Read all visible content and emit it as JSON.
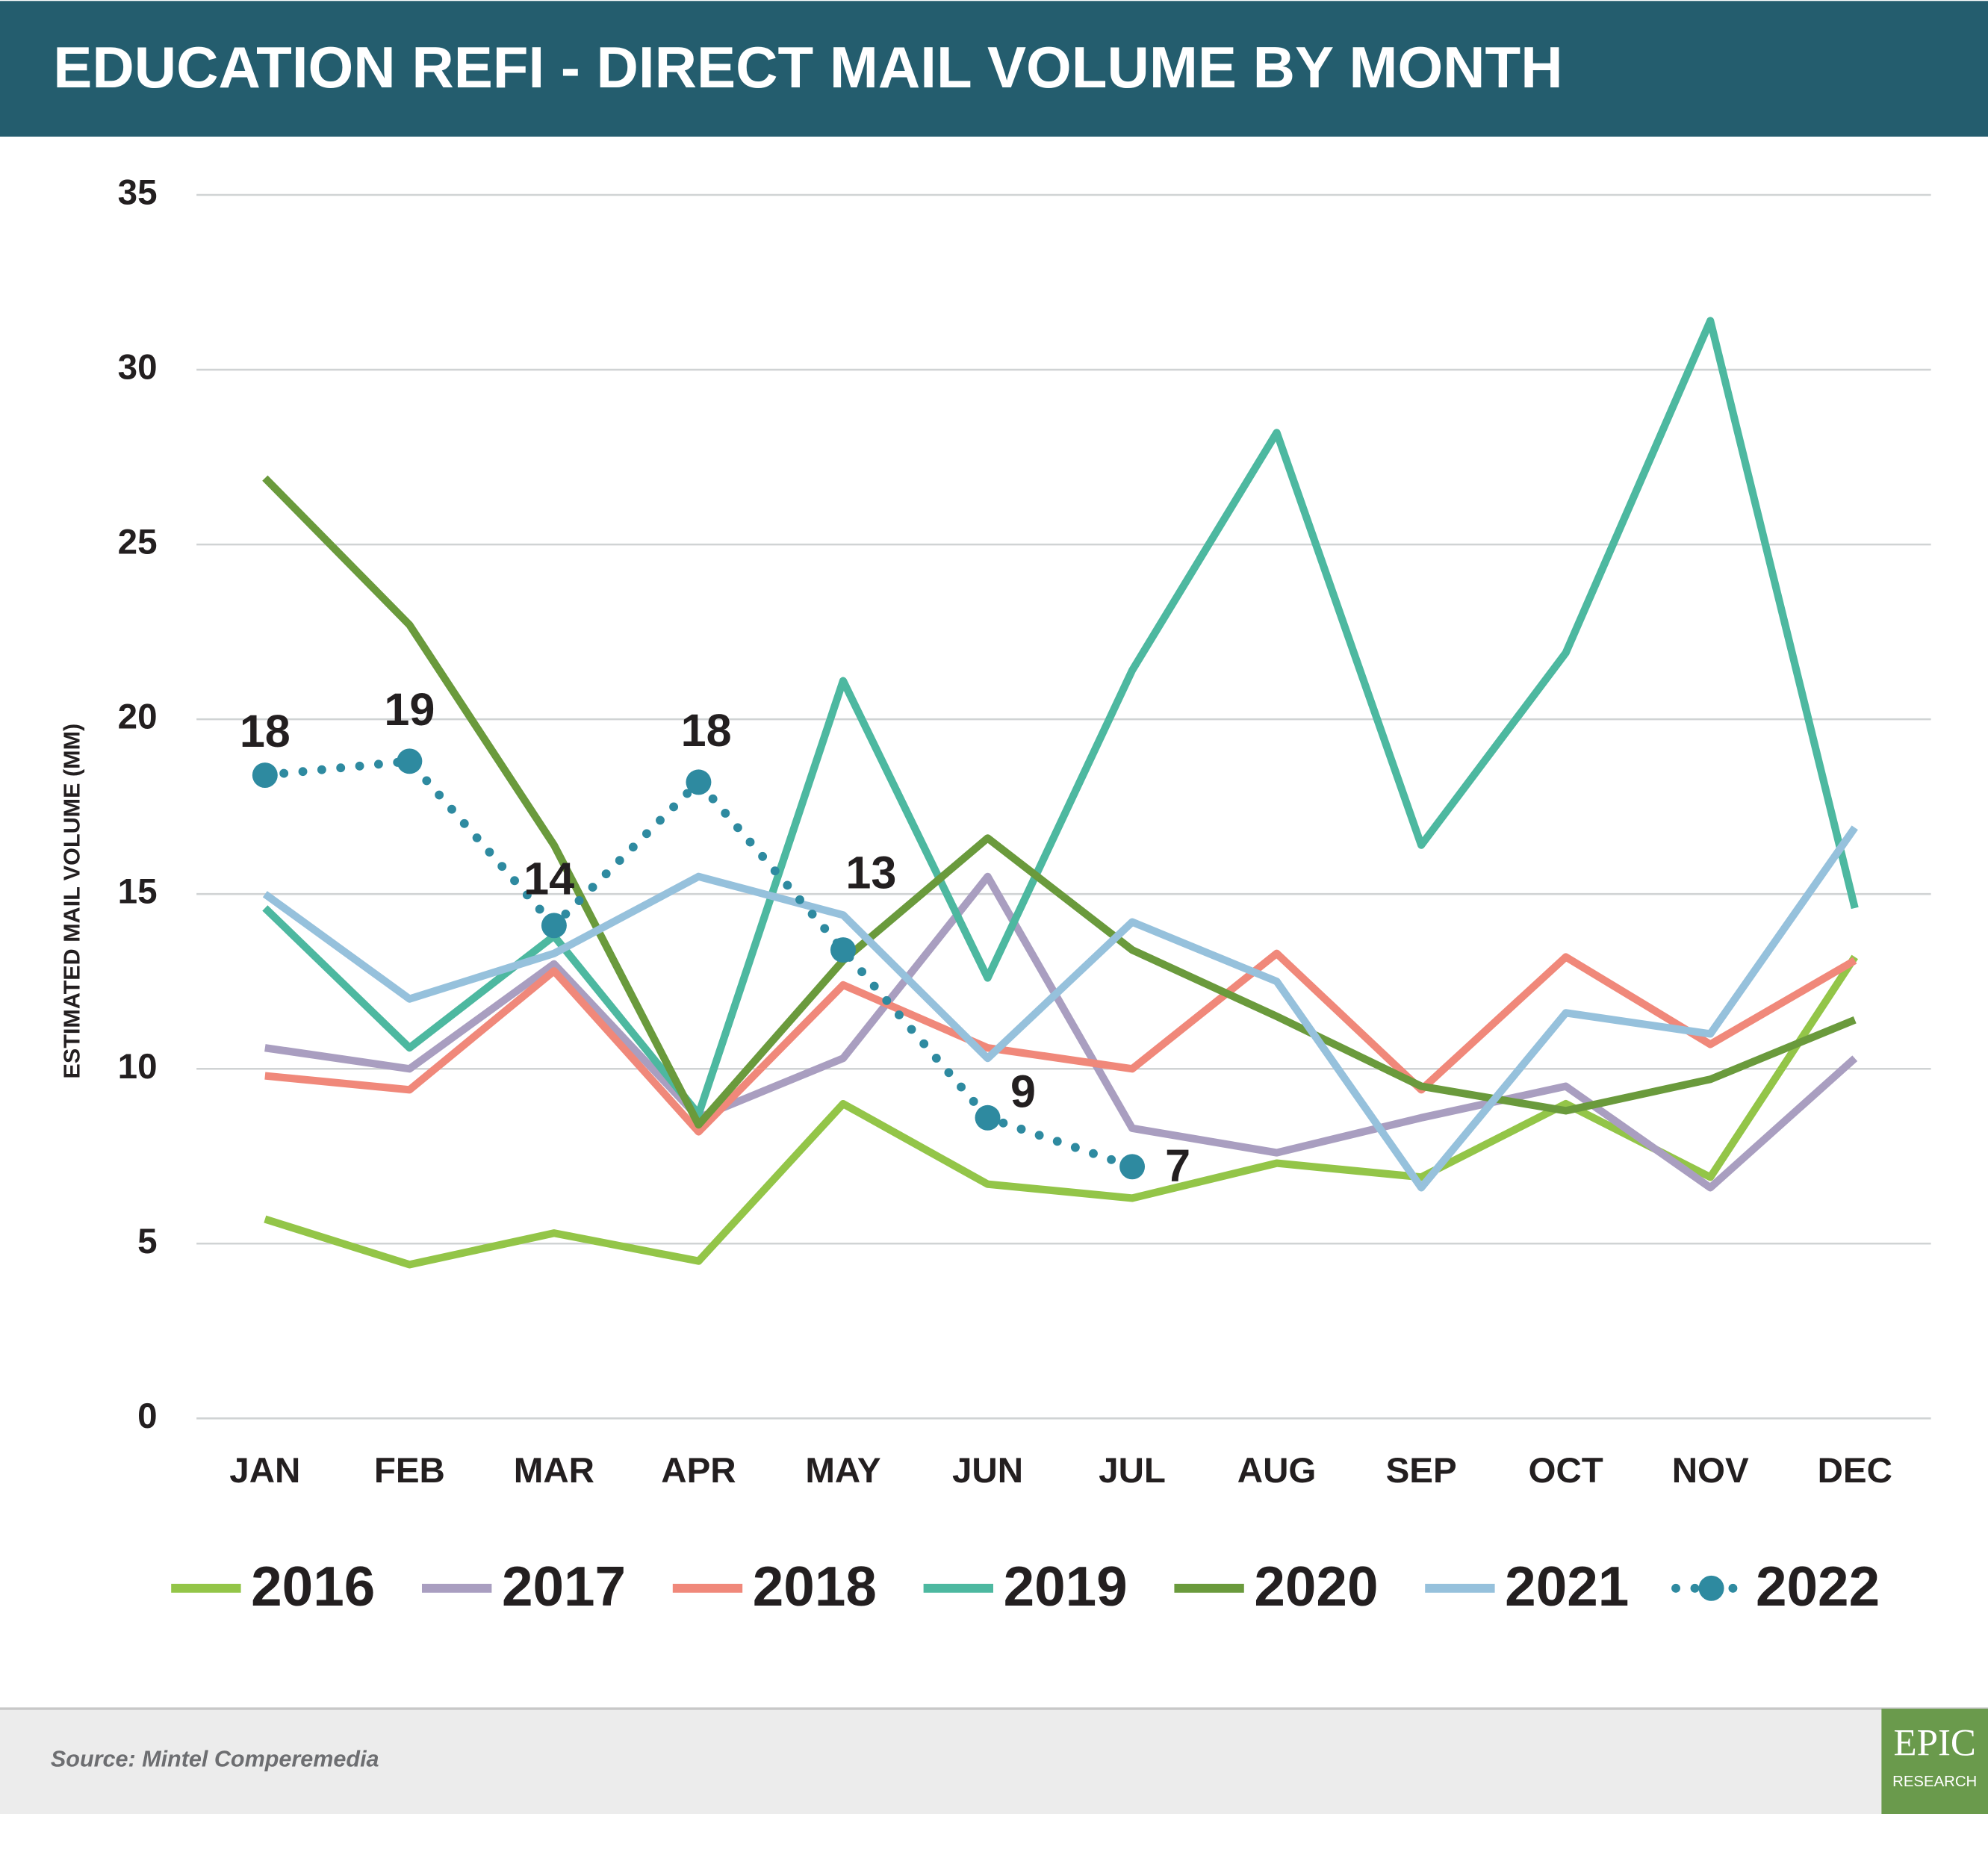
{
  "chart_data": {
    "type": "line",
    "title": "EDUCATION REFI - DIRECT MAIL VOLUME BY MONTH",
    "y_label": "ESTIMATED MAIL VOLUME (MM)",
    "source": "Source: Mintel Comperemedia",
    "logo": {
      "top": "EPIC",
      "bottom": "RESEARCH"
    },
    "categories": [
      "JAN",
      "FEB",
      "MAR",
      "APR",
      "MAY",
      "JUN",
      "JUL",
      "AUG",
      "SEP",
      "OCT",
      "NOV",
      "DEC"
    ],
    "ylim": [
      0,
      35
    ],
    "yticks": [
      0,
      5,
      10,
      15,
      20,
      25,
      30,
      35
    ],
    "grid": true,
    "series": [
      {
        "name": "2016",
        "color": "#93c548",
        "values": [
          5.7,
          4.4,
          5.3,
          4.5,
          9.0,
          6.7,
          6.3,
          7.3,
          6.9,
          9.0,
          6.9,
          13.2
        ]
      },
      {
        "name": "2017",
        "color": "#a99ec0",
        "values": [
          10.6,
          10.0,
          13.0,
          8.6,
          10.3,
          15.5,
          8.3,
          7.6,
          8.6,
          9.5,
          6.6,
          10.3
        ]
      },
      {
        "name": "2018",
        "color": "#f0887a",
        "values": [
          9.8,
          9.4,
          12.8,
          8.2,
          12.4,
          10.6,
          10.0,
          13.3,
          9.4,
          13.2,
          10.7,
          13.1
        ]
      },
      {
        "name": "2019",
        "color": "#4db8a0",
        "values": [
          14.6,
          10.6,
          13.8,
          8.7,
          21.1,
          12.6,
          21.4,
          28.2,
          16.4,
          21.9,
          31.4,
          14.6
        ]
      },
      {
        "name": "2020",
        "color": "#6a9a3c",
        "values": [
          26.9,
          22.7,
          16.4,
          8.4,
          13.1,
          16.6,
          13.4,
          11.5,
          9.5,
          8.8,
          9.7,
          11.4
        ]
      },
      {
        "name": "2021",
        "color": "#96c1dc",
        "values": [
          15.0,
          12.0,
          13.3,
          15.5,
          14.4,
          10.3,
          14.2,
          12.5,
          6.6,
          11.6,
          11.0,
          16.9
        ]
      },
      {
        "name": "2022",
        "color": "#2e8aa0",
        "dotted": true,
        "values": [
          18.4,
          18.8,
          14.1,
          18.2,
          13.4,
          8.6,
          7.2,
          null,
          null,
          null,
          null,
          null
        ],
        "value_labels": [
          "18",
          "19",
          "14",
          "18",
          "13",
          "9",
          "7",
          null,
          null,
          null,
          null,
          null
        ]
      }
    ]
  }
}
